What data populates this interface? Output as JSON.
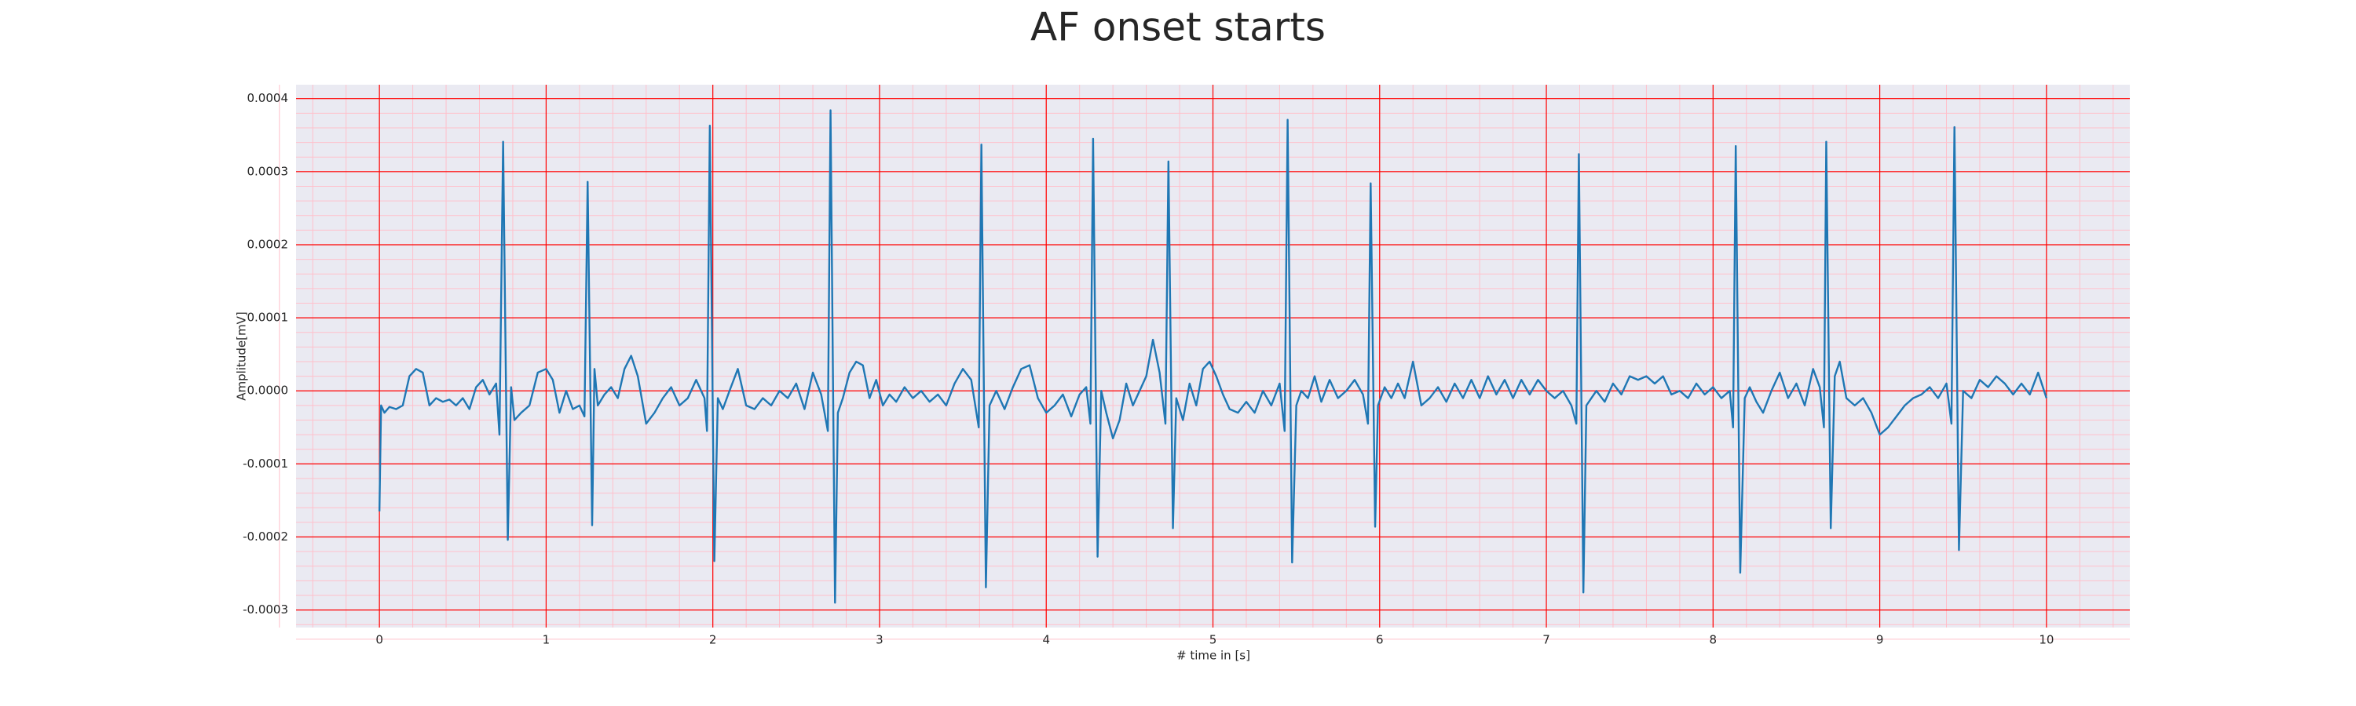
{
  "chart_data": {
    "type": "line",
    "title": "AF onset starts",
    "xlabel": "# time in [s]",
    "ylabel": "Amplitude[mV]",
    "color": "#1f77b4",
    "background": "#eaeaf2",
    "grid": true,
    "grid_color": "#ff0000",
    "minor_grid": true,
    "minor_grid_color": "#ffc0cb",
    "xlim": [
      -0.5,
      10.5
    ],
    "ylim": [
      -0.000324,
      0.000419
    ],
    "xticks": [
      0,
      1,
      2,
      3,
      4,
      5,
      6,
      7,
      8,
      9,
      10
    ],
    "yticks": [
      -0.0003,
      -0.0002,
      -0.0001,
      {
        "value": 0,
        "label": "0.0000"
      },
      0.0001,
      0.0002,
      0.0003,
      0.0004
    ],
    "x": [
      0.0,
      0.01,
      0.03,
      0.06,
      0.1,
      0.14,
      0.18,
      0.22,
      0.26,
      0.3,
      0.34,
      0.38,
      0.42,
      0.46,
      0.5,
      0.54,
      0.58,
      0.62,
      0.66,
      0.7,
      0.72,
      0.742,
      0.77,
      0.79,
      0.81,
      0.85,
      0.9,
      0.95,
      1.0,
      1.04,
      1.08,
      1.12,
      1.16,
      1.2,
      1.23,
      1.249,
      1.276,
      1.29,
      1.31,
      1.35,
      1.39,
      1.43,
      1.47,
      1.51,
      1.55,
      1.6,
      1.65,
      1.7,
      1.75,
      1.8,
      1.85,
      1.9,
      1.95,
      1.965,
      1.982,
      2.009,
      2.03,
      2.06,
      2.1,
      2.15,
      2.2,
      2.25,
      2.3,
      2.35,
      2.4,
      2.45,
      2.5,
      2.55,
      2.6,
      2.65,
      2.69,
      2.706,
      2.733,
      2.75,
      2.78,
      2.82,
      2.86,
      2.9,
      2.94,
      2.98,
      3.02,
      3.06,
      3.1,
      3.15,
      3.2,
      3.25,
      3.3,
      3.35,
      3.4,
      3.45,
      3.5,
      3.55,
      3.595,
      3.611,
      3.638,
      3.66,
      3.7,
      3.75,
      3.8,
      3.85,
      3.9,
      3.95,
      4.0,
      4.05,
      4.1,
      4.15,
      4.2,
      4.24,
      4.265,
      4.281,
      4.308,
      4.33,
      4.36,
      4.4,
      4.44,
      4.48,
      4.52,
      4.56,
      4.6,
      4.64,
      4.68,
      4.715,
      4.733,
      4.76,
      4.78,
      4.82,
      4.86,
      4.9,
      4.94,
      4.98,
      5.02,
      5.06,
      5.1,
      5.15,
      5.2,
      5.25,
      5.3,
      5.35,
      5.4,
      5.43,
      5.448,
      5.475,
      5.5,
      5.53,
      5.57,
      5.61,
      5.65,
      5.7,
      5.75,
      5.8,
      5.85,
      5.9,
      5.93,
      5.946,
      5.973,
      5.99,
      6.03,
      6.07,
      6.11,
      6.15,
      6.2,
      6.25,
      6.3,
      6.35,
      6.4,
      6.45,
      6.5,
      6.55,
      6.6,
      6.65,
      6.7,
      6.75,
      6.8,
      6.85,
      6.9,
      6.95,
      7.0,
      7.05,
      7.1,
      7.15,
      7.18,
      7.195,
      7.222,
      7.24,
      7.27,
      7.3,
      7.35,
      7.4,
      7.45,
      7.5,
      7.55,
      7.6,
      7.65,
      7.7,
      7.75,
      7.8,
      7.85,
      7.9,
      7.95,
      8.0,
      8.05,
      8.1,
      8.12,
      8.136,
      8.163,
      8.19,
      8.22,
      8.26,
      8.3,
      8.35,
      8.4,
      8.45,
      8.5,
      8.55,
      8.6,
      8.64,
      8.665,
      8.679,
      8.706,
      8.73,
      8.76,
      8.8,
      8.85,
      8.9,
      8.95,
      9.0,
      9.05,
      9.1,
      9.15,
      9.2,
      9.25,
      9.3,
      9.35,
      9.4,
      9.43,
      9.448,
      9.475,
      9.5,
      9.55,
      9.6,
      9.65,
      9.7,
      9.75,
      9.8,
      9.85,
      9.9,
      9.95,
      10.0
    ],
    "values": [
      -0.000165,
      -2e-05,
      -3e-05,
      -2.2e-05,
      -2.5e-05,
      -2e-05,
      2e-05,
      3e-05,
      2.5e-05,
      -2e-05,
      -1e-05,
      -1.5e-05,
      -1.2e-05,
      -2e-05,
      -1e-05,
      -2.5e-05,
      5e-06,
      1.5e-05,
      -5e-06,
      1e-05,
      -6e-05,
      0.000341,
      -0.000204,
      5e-06,
      -4e-05,
      -3e-05,
      -2e-05,
      2.5e-05,
      3e-05,
      1.5e-05,
      -3e-05,
      0,
      -2.5e-05,
      -2e-05,
      -3.5e-05,
      0.000286,
      -0.000184,
      3e-05,
      -2e-05,
      -5e-06,
      5e-06,
      -1e-05,
      3e-05,
      4.8e-05,
      2e-05,
      -4.5e-05,
      -3e-05,
      -1e-05,
      5e-06,
      -2e-05,
      -1e-05,
      1.5e-05,
      -1e-05,
      -5.5e-05,
      0.000363,
      -0.000233,
      -1e-05,
      -2.5e-05,
      0,
      3e-05,
      -2e-05,
      -2.5e-05,
      -1e-05,
      -2e-05,
      0,
      -1e-05,
      1e-05,
      -2.5e-05,
      2.5e-05,
      -5e-06,
      -5.5e-05,
      0.000384,
      -0.00029,
      -3e-05,
      -1e-05,
      2.5e-05,
      4e-05,
      3.5e-05,
      -1e-05,
      1.5e-05,
      -2e-05,
      -5e-06,
      -1.5e-05,
      5e-06,
      -1e-05,
      0,
      -1.5e-05,
      -5e-06,
      -2e-05,
      1e-05,
      3e-05,
      1.5e-05,
      -5e-05,
      0.000337,
      -0.000269,
      -2e-05,
      0,
      -2.5e-05,
      5e-06,
      3e-05,
      3.5e-05,
      -1e-05,
      -3e-05,
      -2e-05,
      -5e-06,
      -3.5e-05,
      -5e-06,
      5e-06,
      -4.5e-05,
      0.000345,
      -0.000227,
      0,
      -3e-05,
      -6.5e-05,
      -4e-05,
      1e-05,
      -2e-05,
      0,
      2e-05,
      7e-05,
      2.5e-05,
      -4.5e-05,
      0.000314,
      -0.000188,
      -1e-05,
      -4e-05,
      1e-05,
      -2e-05,
      3e-05,
      4e-05,
      2e-05,
      -5e-06,
      -2.5e-05,
      -3e-05,
      -1.5e-05,
      -3e-05,
      0,
      -2e-05,
      1e-05,
      -5.5e-05,
      0.000371,
      -0.000235,
      -2e-05,
      0,
      -1e-05,
      2e-05,
      -1.5e-05,
      1.5e-05,
      -1e-05,
      0,
      1.5e-05,
      -5e-06,
      -4.5e-05,
      0.000284,
      -0.000186,
      -2e-05,
      5e-06,
      -1e-05,
      1e-05,
      -1e-05,
      4e-05,
      -2e-05,
      -1e-05,
      5e-06,
      -1.5e-05,
      1e-05,
      -1e-05,
      1.5e-05,
      -1e-05,
      2e-05,
      -5e-06,
      1.5e-05,
      -1e-05,
      1.5e-05,
      -5e-06,
      1.5e-05,
      0,
      -1e-05,
      0,
      -2e-05,
      -4.5e-05,
      0.000324,
      -0.000276,
      -2e-05,
      -1e-05,
      0,
      -1.5e-05,
      1e-05,
      -5e-06,
      2e-05,
      1.5e-05,
      2e-05,
      1e-05,
      2e-05,
      -5e-06,
      0,
      -1e-05,
      1e-05,
      -5e-06,
      5e-06,
      -1e-05,
      0,
      -5e-05,
      0.000335,
      -0.000249,
      -1e-05,
      5e-06,
      -1.5e-05,
      -3e-05,
      0,
      2.5e-05,
      -1e-05,
      1e-05,
      -2e-05,
      3e-05,
      5e-06,
      -5e-05,
      0.000341,
      -0.000188,
      2e-05,
      4e-05,
      -1e-05,
      -2e-05,
      -1e-05,
      -3e-05,
      -6e-05,
      -5e-05,
      -3.5e-05,
      -2e-05,
      -1e-05,
      -5e-06,
      5e-06,
      -1e-05,
      1e-05,
      -4.5e-05,
      0.000361,
      -0.000218,
      0,
      -1e-05,
      1.5e-05,
      5e-06,
      2e-05,
      1e-05,
      -5e-06,
      1e-05,
      -5e-06,
      2.5e-05,
      -1e-05
    ]
  }
}
